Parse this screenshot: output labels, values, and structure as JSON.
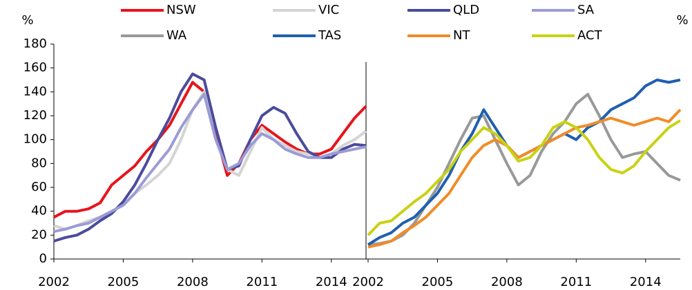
{
  "chart_data": [
    {
      "type": "line",
      "ylabel": "%",
      "x": [
        2002,
        2002.5,
        2003,
        2003.5,
        2004,
        2004.5,
        2005,
        2005.5,
        2006,
        2006.5,
        2007,
        2007.5,
        2008,
        2008.5,
        2009,
        2009.5,
        2010,
        2010.5,
        2011,
        2011.5,
        2012,
        2012.5,
        2013,
        2013.5,
        2014,
        2014.5,
        2015,
        2015.5
      ],
      "xlim": [
        2002,
        2015.5
      ],
      "xticks": [
        2002,
        2005,
        2008,
        2011,
        2014
      ],
      "ylim": [
        0,
        180
      ],
      "yticks": [
        0,
        20,
        40,
        60,
        80,
        100,
        120,
        140,
        160,
        180
      ],
      "series": [
        {
          "name": "NSW",
          "color": "#e8141c",
          "values": [
            35,
            40,
            40,
            42,
            47,
            62,
            70,
            78,
            90,
            100,
            112,
            130,
            148,
            140,
            105,
            70,
            80,
            100,
            112,
            105,
            98,
            92,
            88,
            88,
            92,
            105,
            118,
            128
          ]
        },
        {
          "name": "VIC",
          "color": "#d4d4d4",
          "values": [
            28,
            25,
            28,
            32,
            35,
            40,
            45,
            55,
            62,
            70,
            80,
            100,
            125,
            140,
            110,
            75,
            70,
            90,
            110,
            100,
            95,
            90,
            88,
            85,
            88,
            95,
            100,
            107
          ]
        },
        {
          "name": "QLD",
          "color": "#4b4b9c",
          "values": [
            15,
            18,
            20,
            25,
            32,
            38,
            48,
            62,
            80,
            100,
            118,
            140,
            155,
            150,
            110,
            75,
            78,
            100,
            120,
            127,
            122,
            105,
            90,
            85,
            85,
            92,
            96,
            95
          ]
        },
        {
          "name": "SA",
          "color": "#9b9bd6",
          "values": [
            23,
            25,
            28,
            30,
            35,
            40,
            45,
            55,
            68,
            80,
            92,
            110,
            125,
            138,
            100,
            75,
            80,
            95,
            105,
            100,
            92,
            88,
            85,
            85,
            88,
            90,
            92,
            94
          ]
        }
      ]
    },
    {
      "type": "line",
      "ylabel": "%",
      "x": [
        2002,
        2002.5,
        2003,
        2003.5,
        2004,
        2004.5,
        2005,
        2005.5,
        2006,
        2006.5,
        2007,
        2007.5,
        2008,
        2008.5,
        2009,
        2009.5,
        2010,
        2010.5,
        2011,
        2011.5,
        2012,
        2012.5,
        2013,
        2013.5,
        2014,
        2014.5,
        2015,
        2015.5
      ],
      "xlim": [
        2002,
        2015.5
      ],
      "xticks": [
        2002,
        2005,
        2008,
        2011,
        2014
      ],
      "ylim": [
        0,
        180
      ],
      "series": [
        {
          "name": "WA",
          "color": "#999999",
          "values": [
            12,
            13,
            15,
            20,
            30,
            45,
            60,
            80,
            100,
            118,
            120,
            100,
            80,
            62,
            70,
            90,
            105,
            115,
            130,
            138,
            120,
            100,
            85,
            88,
            90,
            80,
            70,
            66
          ]
        },
        {
          "name": "TAS",
          "color": "#1f5fb0",
          "values": [
            12,
            18,
            22,
            30,
            35,
            45,
            55,
            70,
            90,
            105,
            125,
            110,
            95,
            85,
            90,
            95,
            100,
            105,
            100,
            110,
            115,
            125,
            130,
            135,
            145,
            150,
            148,
            150
          ]
        },
        {
          "name": "NT",
          "color": "#f08c28",
          "values": [
            10,
            12,
            15,
            22,
            28,
            35,
            45,
            55,
            70,
            85,
            95,
            100,
            95,
            85,
            90,
            95,
            100,
            105,
            110,
            112,
            115,
            118,
            115,
            112,
            115,
            118,
            115,
            125
          ]
        },
        {
          "name": "ACT",
          "color": "#c8d214",
          "values": [
            20,
            30,
            32,
            40,
            48,
            55,
            65,
            75,
            90,
            100,
            110,
            105,
            95,
            82,
            85,
            95,
            110,
            115,
            110,
            100,
            85,
            75,
            72,
            78,
            90,
            100,
            110,
            116
          ]
        }
      ]
    }
  ]
}
